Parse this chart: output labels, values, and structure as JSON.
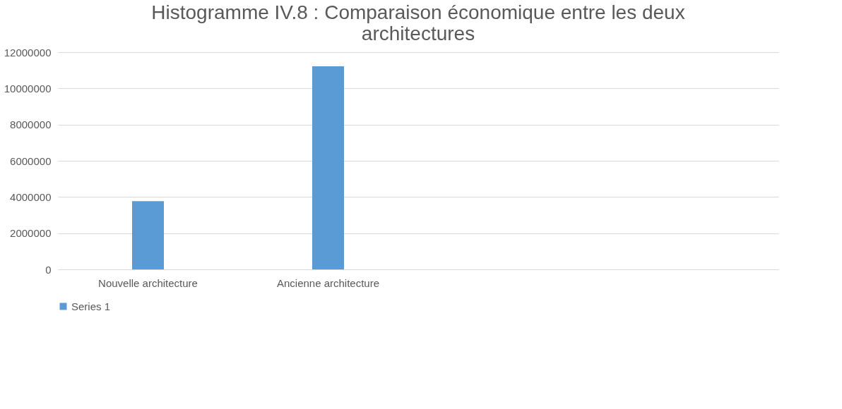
{
  "chart_data": {
    "type": "bar",
    "title": "Histogramme IV.8 : Comparaison économique entre les deux architectures",
    "categories": [
      "Nouvelle architecture",
      "Ancienne architecture",
      null,
      null
    ],
    "series": [
      {
        "name": "Series 1",
        "color": "#5b9bd5",
        "values": [
          3770000,
          11220000,
          null,
          null
        ]
      }
    ],
    "ylim": [
      0,
      12000000
    ],
    "yticks": [
      0,
      2000000,
      4000000,
      6000000,
      8000000,
      10000000,
      12000000
    ],
    "grid": "y",
    "legend": "bottom"
  }
}
